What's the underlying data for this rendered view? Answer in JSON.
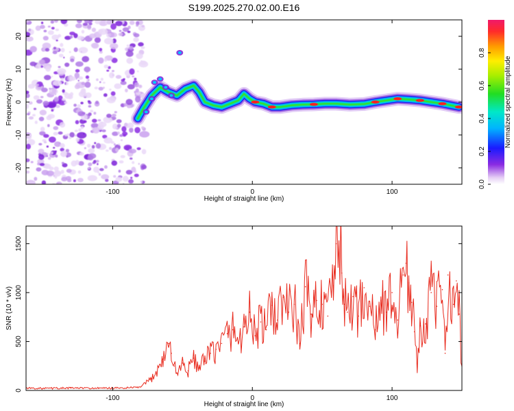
{
  "figure": {
    "title": "S199.2025.270.02.00.E16"
  },
  "chart_data": [
    {
      "type": "heatmap",
      "name": "spectrogram",
      "title": "S199.2025.270.02.00.E16",
      "xlabel": "Height of straight line (km)",
      "ylabel": "Frequency (Hz)",
      "xlim": [
        -162,
        150
      ],
      "ylim": [
        -25,
        25
      ],
      "xticks": [
        -100,
        0,
        100
      ],
      "yticks": [
        -20,
        -10,
        0,
        10,
        20
      ],
      "noise_region": [
        -162,
        -80
      ],
      "doppler_trace": {
        "x": [
          -82,
          -78,
          -72,
          -66,
          -60,
          -54,
          -48,
          -42,
          -38,
          -34,
          -28,
          -22,
          -16,
          -10,
          -6,
          -2,
          2,
          8,
          14,
          20,
          28,
          36,
          44,
          52,
          60,
          70,
          80,
          88,
          96,
          104,
          112,
          120,
          128,
          136,
          142,
          148
        ],
        "y": [
          -5,
          -2,
          2,
          4.5,
          3,
          2,
          4,
          5,
          3,
          0,
          -1,
          -1.5,
          -0.5,
          0.5,
          2.5,
          1,
          0,
          -0.5,
          -1.5,
          -1.5,
          -1,
          -0.8,
          -0.7,
          -0.5,
          -0.5,
          -0.8,
          -0.6,
          0,
          0.5,
          1,
          0.8,
          0.5,
          0,
          -0.5,
          -1,
          -1.5
        ]
      },
      "colorbar": {
        "label": "Normalized spectral amplitude",
        "ticks": [
          "0.0",
          "0.2",
          "0.4",
          "0.6",
          "0.8"
        ],
        "range": [
          0,
          1
        ]
      }
    },
    {
      "type": "line",
      "name": "snr",
      "xlabel": "Height of straight line (km)",
      "ylabel": "SNR (10 * v/v)",
      "xlim": [
        -162,
        150
      ],
      "ylim": [
        0,
        1680
      ],
      "xticks": [
        -100,
        0,
        100
      ],
      "yticks": [
        0,
        500,
        1000,
        1500
      ],
      "color": "#e8291c",
      "series": [
        {
          "name": "SNR",
          "x": [
            -162,
            -150,
            -130,
            -110,
            -90,
            -80,
            -72,
            -64,
            -60,
            -58,
            -56,
            -54,
            -50,
            -46,
            -42,
            -38,
            -34,
            -30,
            -26,
            -22,
            -18,
            -14,
            -10,
            -6,
            -2,
            2,
            6,
            10,
            14,
            18,
            22,
            26,
            30,
            34,
            38,
            42,
            46,
            50,
            54,
            58,
            60,
            62,
            64,
            66,
            68,
            72,
            76,
            80,
            84,
            88,
            92,
            96,
            100,
            104,
            108,
            110,
            112,
            114,
            116,
            118,
            120,
            124,
            128,
            132,
            136,
            138,
            140,
            144,
            146,
            148,
            150
          ],
          "y": [
            25,
            20,
            25,
            22,
            25,
            35,
            120,
            320,
            480,
            380,
            250,
            180,
            280,
            200,
            330,
            230,
            300,
            380,
            420,
            480,
            580,
            620,
            480,
            650,
            800,
            560,
            700,
            620,
            870,
            720,
            950,
            800,
            880,
            480,
            1060,
            780,
            920,
            880,
            760,
            1070,
            1500,
            1680,
            1200,
            880,
            800,
            960,
            760,
            1050,
            860,
            620,
            920,
            800,
            1000,
            720,
            1180,
            1300,
            1100,
            900,
            600,
            240,
            660,
            680,
            1000,
            860,
            1030,
            380,
            1180,
            880,
            1120,
            780,
            250
          ]
        }
      ]
    }
  ]
}
